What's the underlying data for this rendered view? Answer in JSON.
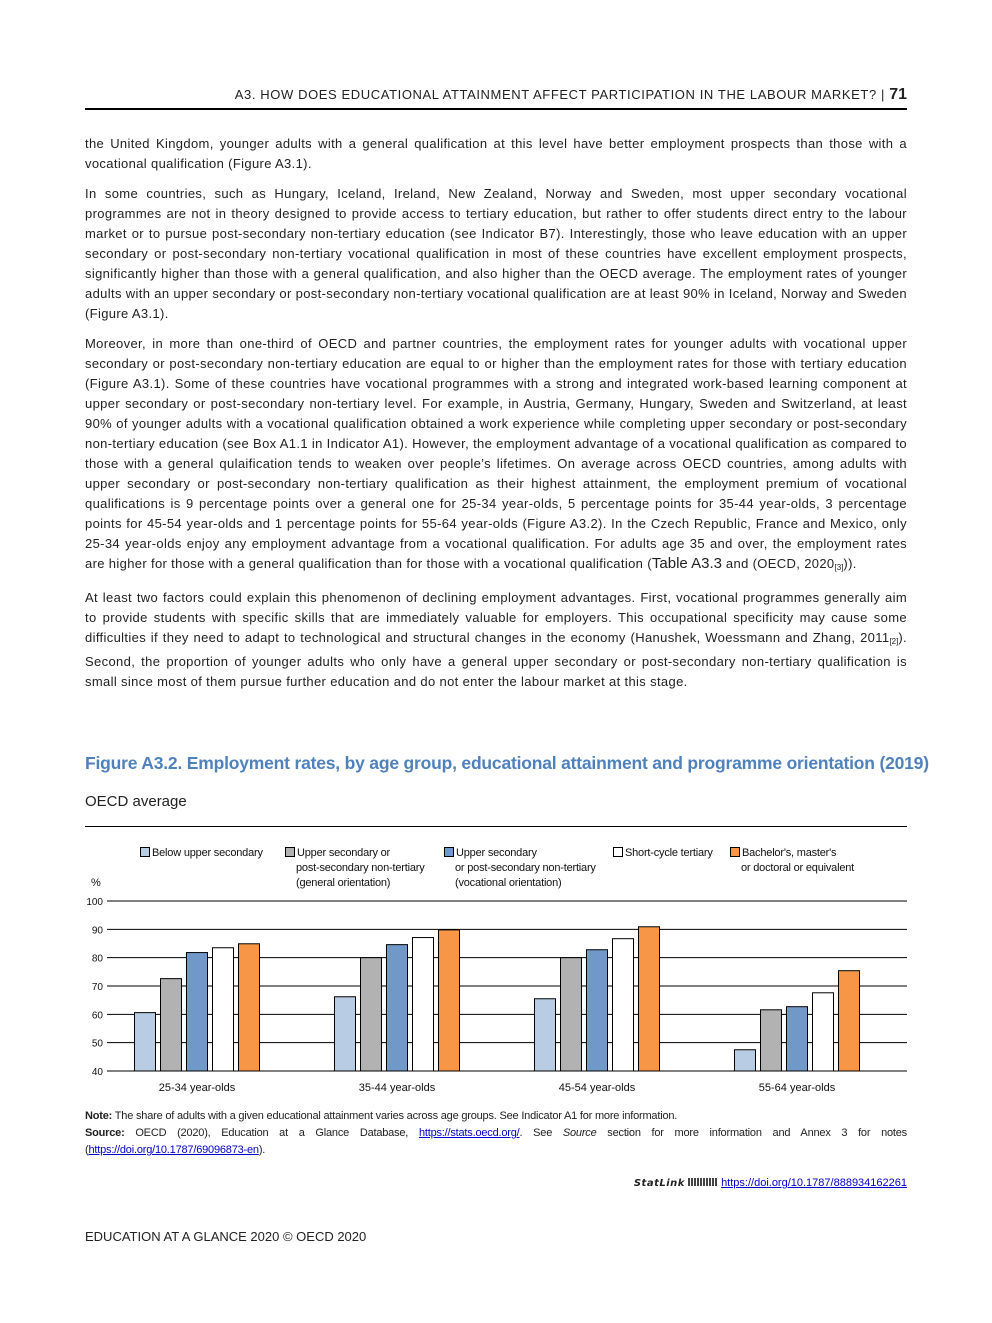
{
  "header": {
    "title": "A3. HOW DOES EDUCATIONAL ATTAINMENT AFFECT PARTICIPATION IN THE LABOUR MARKET?",
    "separator": "|",
    "page_number": "71"
  },
  "paragraphs": {
    "p1": "the United Kingdom, younger adults with a general qualification at this level have better employment prospects than those with a vocational qualification (Figure A3.1).",
    "p2": "In some countries, such as Hungary, Iceland, Ireland, New Zealand, Norway and Sweden, most upper secondary vocational programmes are not in theory designed to provide access to tertiary education, but rather to offer students direct entry to the labour market or to pursue post-secondary non-tertiary education (see Indicator B7). Interestingly, those who leave education with an upper secondary or post-secondary non-tertiary vocational qualification in most of these countries have excellent employment prospects, significantly higher than those with a general qualification, and also higher than the OECD average. The employment rates of younger adults with an upper secondary or post-secondary non-tertiary vocational qualification are at least 90% in Iceland, Norway and Sweden (Figure A3.1).",
    "p3a": "Moreover, in more than one-third of OECD and partner countries, the employment rates for younger adults with vocational upper secondary or post-secondary non-tertiary education are equal to or higher than the employment rates for those with tertiary education (Figure A3.1). Some of these countries have vocational programmes with a strong and integrated work-based learning component at upper secondary or post-secondary non-tertiary level. For example, in Austria, Germany, Hungary, Sweden and Switzerland, at least 90% of younger adults with a vocational qualification obtained a work experience while completing upper secondary or post-secondary non-tertiary education (see Box A1.1 in Indicator A1). However, the employment advantage of a vocational qualification as compared to those with a general qulaification tends to weaken over people’s lifetimes. On average across OECD countries, among adults with upper secondary or post-secondary non-tertiary qualification as their highest attainment, the employment premium of vocational qualifications is 9 percentage points over a general one for 25-34 year-olds, 5 percentage points for 35-44 year-olds, 3 percentage points for 45-54 year-olds and 1 percentage points for 55-64 year-olds (Figure A3.2). In the Czech Republic, France and Mexico, only 25-34 year-olds enjoy any employment advantage from a vocational qualification. For adults age 35 and over, the employment rates are higher for those with a general qualification than for those with a vocational qualification (",
    "p3b": "Table A3.3",
    "p3c": " and (OECD, 2020",
    "p3cite": "[3]",
    "p3d": ")).",
    "p4a": "At least two factors could explain this phenomenon of declining employment advantages. First, vocational programmes generally aim to provide students with specific skills that are immediately valuable for employers. This occupational specificity may cause some difficulties if they need to adapt to technological and structural changes in the economy (Hanushek, Woessmann and Zhang, 2011",
    "p4cite": "[2]",
    "p4b": "). Second, the proportion of younger adults who only have a general upper secondary or post-secondary non-tertiary qualification is small since most of them pursue further education and do not enter the labour market at this stage."
  },
  "figure": {
    "title": "Figure A3.2. Employment rates, by age group, educational attainment and programme orientation (2019)",
    "subtitle": "OECD average",
    "note_label": "Note:",
    "note": " The share of adults with a given educational attainment varies across age groups. See Indicator A1 for more information.",
    "source_label": "Source:",
    "source_a": " OECD (2020), Education at a Glance Database, ",
    "source_link1": "https://stats.oecd.org/",
    "source_b": ". See ",
    "source_italic": "Source",
    "source_c": " section for more information and Annex 3 for notes (",
    "source_link2": "https://doi.org/10.1787/69096873-en",
    "source_d": ").",
    "statlink_label": "StatLink",
    "statlink_url": "https://doi.org/10.1787/888934162261"
  },
  "chart_data": {
    "type": "bar",
    "ylabel": "%",
    "ylim": [
      40,
      100
    ],
    "yticks": [
      "100",
      "90",
      "80",
      "70",
      "60",
      "50",
      "40"
    ],
    "grid": true,
    "legend_position": "top",
    "categories": [
      "25-34 year-olds",
      "35-44 year-olds",
      "45-54 year-olds",
      "55-64 year-olds"
    ],
    "series": [
      {
        "name": "Below upper secondary",
        "color": "#b8cce4",
        "values": [
          60.6,
          66.2,
          65.5,
          47.5
        ]
      },
      {
        "name": "Upper secondary or post-secondary non-tertiary (general orientation)",
        "lines": [
          "Upper secondary or",
          "post-secondary non-tertiary",
          "(general orientation)"
        ],
        "color": "#b2b2b2",
        "values": [
          72.6,
          80.0,
          80.0,
          61.6
        ]
      },
      {
        "name": "Upper secondary or post-secondary non-tertiary (vocational orientation)",
        "lines": [
          "Upper secondary",
          "or post-secondary non-tertiary",
          "(vocational orientation)"
        ],
        "color": "#7098c9",
        "values": [
          81.8,
          84.6,
          82.8,
          62.7
        ]
      },
      {
        "name": "Short-cycle tertiary",
        "lines": [
          "Short-cycle tertiary"
        ],
        "color": "#ffffff",
        "values": [
          83.5,
          87.1,
          86.7,
          67.6
        ]
      },
      {
        "name": "Bachelor's, master's or doctoral or equivalent",
        "lines": [
          "Bachelor's, master's",
          "or doctoral or equivalent"
        ],
        "color": "#f79646",
        "values": [
          84.9,
          89.8,
          90.9,
          75.4
        ]
      }
    ]
  },
  "footer": {
    "text": "EDUCATION AT A GLANCE 2020 © OECD 2020"
  }
}
